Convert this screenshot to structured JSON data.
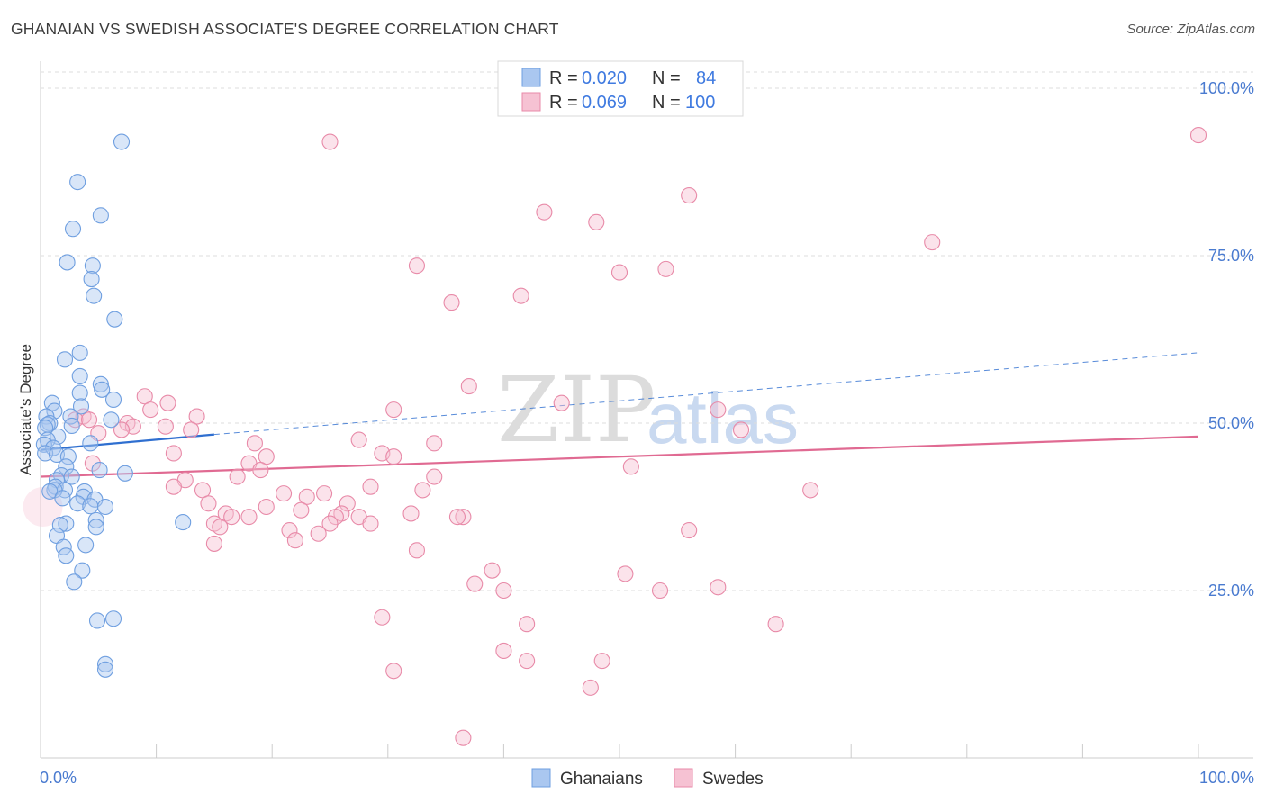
{
  "header": {
    "title": "GHANAIAN VS SWEDISH ASSOCIATE'S DEGREE CORRELATION CHART",
    "source": "Source: ZipAtlas.com"
  },
  "watermark": {
    "zip": "ZIP",
    "atlas": "atlas"
  },
  "colors": {
    "blue": "#6f9fe0",
    "blue_fill": "#aac7f0",
    "blue_line": "#2f6fd0",
    "pink": "#e88aa8",
    "pink_fill": "#f6c2d3",
    "pink_line": "#e06a92",
    "grid": "#dddddd",
    "tick_text": "#4a7bd0"
  },
  "legend": {
    "r_label": "R =",
    "n_label": "N =",
    "rows": [
      {
        "series": "Ghanaians",
        "r": "0.020",
        "n": "84"
      },
      {
        "series": "Swedes",
        "r": "0.069",
        "n": "100"
      }
    ]
  },
  "chart_data": {
    "type": "scatter",
    "title": "GHANAIAN VS SWEDISH ASSOCIATE'S DEGREE CORRELATION CHART",
    "xlabel": "",
    "ylabel": "Associate's Degree",
    "xlim": [
      0,
      100
    ],
    "ylim": [
      0,
      100
    ],
    "x_tick_labels": [
      "0.0%",
      "100.0%"
    ],
    "y_tick_labels": [
      {
        "value": 100,
        "label": "100.0%"
      },
      {
        "value": 75,
        "label": "75.0%"
      },
      {
        "value": 50,
        "label": "50.0%"
      },
      {
        "value": 25,
        "label": "25.0%"
      }
    ],
    "grid": true,
    "legend_position": "top-center",
    "series": [
      {
        "name": "Ghanaians",
        "trend": {
          "x0": 0,
          "y0": 46.0,
          "x1": 15,
          "y1": 48.3,
          "dashed_to_x": 100,
          "dashed_to_y": 60.5
        },
        "points": [
          [
            7.0,
            92.0
          ],
          [
            3.2,
            86.0
          ],
          [
            5.2,
            81.0
          ],
          [
            2.8,
            79.0
          ],
          [
            2.3,
            74.0
          ],
          [
            4.5,
            73.5
          ],
          [
            4.4,
            71.5
          ],
          [
            4.6,
            69.0
          ],
          [
            6.4,
            65.5
          ],
          [
            3.4,
            60.5
          ],
          [
            2.1,
            59.5
          ],
          [
            3.4,
            57.0
          ],
          [
            5.2,
            55.8
          ],
          [
            5.3,
            55.0
          ],
          [
            3.4,
            54.5
          ],
          [
            6.3,
            53.5
          ],
          [
            1.0,
            53.0
          ],
          [
            3.5,
            52.5
          ],
          [
            1.2,
            51.8
          ],
          [
            2.6,
            51.0
          ],
          [
            0.5,
            51.0
          ],
          [
            6.1,
            50.5
          ],
          [
            0.8,
            50.0
          ],
          [
            0.6,
            49.8
          ],
          [
            2.7,
            49.6
          ],
          [
            0.4,
            49.3
          ],
          [
            1.5,
            48.0
          ],
          [
            0.6,
            47.5
          ],
          [
            0.3,
            46.8
          ],
          [
            1.1,
            46.3
          ],
          [
            0.4,
            45.5
          ],
          [
            1.4,
            45.3
          ],
          [
            2.4,
            45.0
          ],
          [
            4.3,
            47.0
          ],
          [
            5.1,
            43.0
          ],
          [
            7.3,
            42.5
          ],
          [
            2.2,
            43.5
          ],
          [
            1.8,
            42.2
          ],
          [
            2.7,
            42.0
          ],
          [
            1.4,
            41.5
          ],
          [
            1.3,
            40.5
          ],
          [
            2.1,
            40.0
          ],
          [
            1.2,
            40.0
          ],
          [
            0.8,
            39.8
          ],
          [
            3.8,
            39.8
          ],
          [
            3.7,
            39.0
          ],
          [
            1.9,
            38.8
          ],
          [
            4.7,
            38.6
          ],
          [
            3.2,
            38.0
          ],
          [
            4.3,
            37.6
          ],
          [
            5.6,
            37.5
          ],
          [
            4.8,
            35.5
          ],
          [
            2.2,
            35.0
          ],
          [
            1.7,
            34.8
          ],
          [
            4.8,
            34.5
          ],
          [
            12.3,
            35.2
          ],
          [
            1.4,
            33.2
          ],
          [
            3.9,
            31.8
          ],
          [
            2.0,
            31.5
          ],
          [
            2.2,
            30.2
          ],
          [
            3.6,
            28.0
          ],
          [
            2.9,
            26.3
          ],
          [
            6.3,
            20.8
          ],
          [
            4.9,
            20.5
          ],
          [
            5.6,
            14.0
          ],
          [
            5.6,
            13.2
          ]
        ]
      },
      {
        "name": "Swedes",
        "trend": {
          "x0": 0,
          "y0": 42.0,
          "x1": 100,
          "y1": 48.0
        },
        "points": [
          [
            100.0,
            93.0
          ],
          [
            25.0,
            92.0
          ],
          [
            43.5,
            81.5
          ],
          [
            56.0,
            84.0
          ],
          [
            48.0,
            80.0
          ],
          [
            77.0,
            77.0
          ],
          [
            32.5,
            73.5
          ],
          [
            50.0,
            72.5
          ],
          [
            54.0,
            73.0
          ],
          [
            41.5,
            69.0
          ],
          [
            35.5,
            68.0
          ],
          [
            37.0,
            55.5
          ],
          [
            45.0,
            53.0
          ],
          [
            30.5,
            52.0
          ],
          [
            58.5,
            52.0
          ],
          [
            9.0,
            54.0
          ],
          [
            11.0,
            53.0
          ],
          [
            9.5,
            52.0
          ],
          [
            13.5,
            51.0
          ],
          [
            3.7,
            51.0
          ],
          [
            3.0,
            50.5
          ],
          [
            4.2,
            50.5
          ],
          [
            7.5,
            50.0
          ],
          [
            8.0,
            49.5
          ],
          [
            10.8,
            49.5
          ],
          [
            13.0,
            49.0
          ],
          [
            7.0,
            49.0
          ],
          [
            5.0,
            48.5
          ],
          [
            60.5,
            49.0
          ],
          [
            27.5,
            47.5
          ],
          [
            18.5,
            47.0
          ],
          [
            34.0,
            47.0
          ],
          [
            29.5,
            45.5
          ],
          [
            30.5,
            45.0
          ],
          [
            11.5,
            45.5
          ],
          [
            19.5,
            45.0
          ],
          [
            18.0,
            44.0
          ],
          [
            4.5,
            44.0
          ],
          [
            51.0,
            43.5
          ],
          [
            19.0,
            43.0
          ],
          [
            17.0,
            42.0
          ],
          [
            12.5,
            41.5
          ],
          [
            34.0,
            42.0
          ],
          [
            11.5,
            40.5
          ],
          [
            28.5,
            40.5
          ],
          [
            33.0,
            40.0
          ],
          [
            14.0,
            40.0
          ],
          [
            21.0,
            39.5
          ],
          [
            66.5,
            40.0
          ],
          [
            23.0,
            39.0
          ],
          [
            24.5,
            39.5
          ],
          [
            14.5,
            38.0
          ],
          [
            26.5,
            38.0
          ],
          [
            19.5,
            37.5
          ],
          [
            22.5,
            37.0
          ],
          [
            32.0,
            36.5
          ],
          [
            26.0,
            36.5
          ],
          [
            16.0,
            36.5
          ],
          [
            25.5,
            36.0
          ],
          [
            16.5,
            36.0
          ],
          [
            18.0,
            36.0
          ],
          [
            36.5,
            36.0
          ],
          [
            27.5,
            36.0
          ],
          [
            28.5,
            35.0
          ],
          [
            15.0,
            35.0
          ],
          [
            36.0,
            36.0
          ],
          [
            25.0,
            35.0
          ],
          [
            15.5,
            34.5
          ],
          [
            21.5,
            34.0
          ],
          [
            24.0,
            33.5
          ],
          [
            56.0,
            34.0
          ],
          [
            22.0,
            32.5
          ],
          [
            15.0,
            32.0
          ],
          [
            32.5,
            31.0
          ],
          [
            39.0,
            28.0
          ],
          [
            50.5,
            27.5
          ],
          [
            37.5,
            26.0
          ],
          [
            58.5,
            25.5
          ],
          [
            53.5,
            25.0
          ],
          [
            40.0,
            25.0
          ],
          [
            29.5,
            21.0
          ],
          [
            42.0,
            20.0
          ],
          [
            63.5,
            20.0
          ],
          [
            40.0,
            16.0
          ],
          [
            48.5,
            14.5
          ],
          [
            42.0,
            14.5
          ],
          [
            30.5,
            13.0
          ],
          [
            47.5,
            10.5
          ],
          [
            36.5,
            3.0
          ]
        ]
      }
    ]
  },
  "bottom_legend": [
    {
      "label": "Ghanaians"
    },
    {
      "label": "Swedes"
    }
  ]
}
